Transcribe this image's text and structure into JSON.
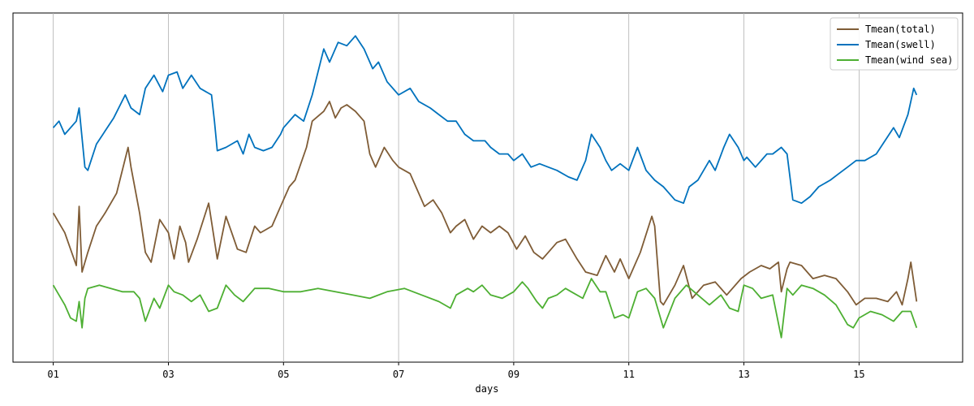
{
  "chart_data": {
    "type": "line",
    "title": "",
    "xlabel": "days",
    "ylabel": "",
    "x_ticks": [
      "01",
      "03",
      "05",
      "07",
      "09",
      "11",
      "13",
      "15"
    ],
    "x_tick_days": [
      1,
      3,
      5,
      7,
      9,
      11,
      13,
      15
    ],
    "xlim": [
      0.3,
      16.8
    ],
    "ylim": [
      0,
      1
    ],
    "grid": "vertical",
    "legend_position": "top-right",
    "series": [
      {
        "name": "Tmean(total)",
        "color": "#7f5c36",
        "x": [
          1.0,
          1.2,
          1.4,
          1.45,
          1.5,
          1.6,
          1.75,
          1.9,
          2.1,
          2.3,
          2.35,
          2.5,
          2.6,
          2.7,
          2.85,
          3.0,
          3.1,
          3.2,
          3.3,
          3.35,
          3.5,
          3.7,
          3.85,
          4.0,
          4.1,
          4.2,
          4.35,
          4.5,
          4.6,
          4.8,
          4.95,
          5.1,
          5.2,
          5.4,
          5.5,
          5.7,
          5.8,
          5.9,
          6.0,
          6.1,
          6.25,
          6.4,
          6.5,
          6.6,
          6.75,
          6.9,
          7.0,
          7.2,
          7.3,
          7.45,
          7.6,
          7.75,
          7.9,
          8.0,
          8.15,
          8.3,
          8.45,
          8.6,
          8.75,
          8.9,
          9.05,
          9.2,
          9.35,
          9.5,
          9.6,
          9.75,
          9.9,
          10.1,
          10.25,
          10.45,
          10.6,
          10.75,
          10.85,
          11.0,
          11.2,
          11.4,
          11.45,
          11.55,
          11.6,
          11.8,
          11.95,
          12.1,
          12.3,
          12.5,
          12.7,
          12.95,
          13.1,
          13.3,
          13.45,
          13.6,
          13.65,
          13.75,
          13.8,
          14.0,
          14.2,
          14.4,
          14.6,
          14.8,
          14.95,
          15.1,
          15.3,
          15.5,
          15.65,
          15.75,
          15.85,
          15.9,
          16.0
        ],
        "values": [
          0.42,
          0.36,
          0.26,
          0.44,
          0.24,
          0.3,
          0.38,
          0.42,
          0.48,
          0.62,
          0.56,
          0.42,
          0.3,
          0.27,
          0.4,
          0.36,
          0.28,
          0.38,
          0.33,
          0.27,
          0.34,
          0.45,
          0.28,
          0.41,
          0.36,
          0.31,
          0.3,
          0.38,
          0.36,
          0.38,
          0.44,
          0.5,
          0.52,
          0.62,
          0.7,
          0.73,
          0.76,
          0.71,
          0.74,
          0.75,
          0.73,
          0.7,
          0.6,
          0.56,
          0.62,
          0.58,
          0.56,
          0.54,
          0.5,
          0.44,
          0.46,
          0.42,
          0.36,
          0.38,
          0.4,
          0.34,
          0.38,
          0.36,
          0.38,
          0.36,
          0.31,
          0.35,
          0.3,
          0.28,
          0.3,
          0.33,
          0.34,
          0.28,
          0.24,
          0.23,
          0.29,
          0.24,
          0.28,
          0.22,
          0.3,
          0.41,
          0.38,
          0.15,
          0.14,
          0.2,
          0.26,
          0.16,
          0.2,
          0.21,
          0.17,
          0.22,
          0.24,
          0.26,
          0.25,
          0.27,
          0.18,
          0.25,
          0.27,
          0.26,
          0.22,
          0.23,
          0.22,
          0.18,
          0.14,
          0.16,
          0.16,
          0.15,
          0.18,
          0.14,
          0.22,
          0.27,
          0.15
        ]
      },
      {
        "name": "Tmean(swell)",
        "color": "#0072bd",
        "x": [
          1.0,
          1.1,
          1.2,
          1.3,
          1.4,
          1.45,
          1.55,
          1.6,
          1.75,
          1.9,
          2.05,
          2.25,
          2.35,
          2.5,
          2.6,
          2.75,
          2.9,
          3.0,
          3.15,
          3.25,
          3.4,
          3.55,
          3.75,
          3.8,
          3.85,
          4.0,
          4.2,
          4.3,
          4.4,
          4.5,
          4.65,
          4.8,
          4.95,
          5.0,
          5.2,
          5.35,
          5.5,
          5.7,
          5.8,
          5.95,
          6.1,
          6.25,
          6.4,
          6.55,
          6.65,
          6.8,
          7.0,
          7.2,
          7.35,
          7.55,
          7.7,
          7.85,
          8.0,
          8.15,
          8.3,
          8.5,
          8.6,
          8.75,
          8.9,
          9.0,
          9.15,
          9.3,
          9.45,
          9.6,
          9.75,
          9.95,
          10.1,
          10.25,
          10.35,
          10.5,
          10.6,
          10.7,
          10.85,
          11.0,
          11.15,
          11.3,
          11.45,
          11.6,
          11.8,
          11.95,
          12.05,
          12.2,
          12.4,
          12.5,
          12.65,
          12.75,
          12.9,
          13.0,
          13.05,
          13.2,
          13.4,
          13.5,
          13.65,
          13.75,
          13.85,
          14.0,
          14.15,
          14.3,
          14.5,
          14.65,
          14.8,
          14.95,
          15.1,
          15.3,
          15.45,
          15.6,
          15.7,
          15.85,
          15.95,
          16.0
        ],
        "values": [
          0.68,
          0.7,
          0.66,
          0.68,
          0.7,
          0.74,
          0.56,
          0.55,
          0.63,
          0.67,
          0.71,
          0.78,
          0.74,
          0.72,
          0.8,
          0.84,
          0.79,
          0.84,
          0.85,
          0.8,
          0.84,
          0.8,
          0.78,
          0.7,
          0.61,
          0.62,
          0.64,
          0.6,
          0.66,
          0.62,
          0.61,
          0.62,
          0.66,
          0.68,
          0.72,
          0.7,
          0.78,
          0.92,
          0.88,
          0.94,
          0.93,
          0.96,
          0.92,
          0.86,
          0.88,
          0.82,
          0.78,
          0.8,
          0.76,
          0.74,
          0.72,
          0.7,
          0.7,
          0.66,
          0.64,
          0.64,
          0.62,
          0.6,
          0.6,
          0.58,
          0.6,
          0.56,
          0.57,
          0.56,
          0.55,
          0.53,
          0.52,
          0.58,
          0.66,
          0.62,
          0.58,
          0.55,
          0.57,
          0.55,
          0.62,
          0.55,
          0.52,
          0.5,
          0.46,
          0.45,
          0.5,
          0.52,
          0.58,
          0.55,
          0.62,
          0.66,
          0.62,
          0.58,
          0.59,
          0.56,
          0.6,
          0.6,
          0.62,
          0.6,
          0.46,
          0.45,
          0.47,
          0.5,
          0.52,
          0.54,
          0.56,
          0.58,
          0.58,
          0.6,
          0.64,
          0.68,
          0.65,
          0.72,
          0.8,
          0.78
        ]
      },
      {
        "name": "Tmean(wind sea)",
        "color": "#4daf32",
        "x": [
          1.0,
          1.1,
          1.2,
          1.3,
          1.4,
          1.45,
          1.5,
          1.55,
          1.6,
          1.8,
          2.0,
          2.2,
          2.4,
          2.5,
          2.6,
          2.75,
          2.85,
          3.0,
          3.1,
          3.25,
          3.4,
          3.55,
          3.7,
          3.85,
          4.0,
          4.15,
          4.3,
          4.5,
          4.75,
          5.0,
          5.3,
          5.6,
          5.9,
          6.2,
          6.5,
          6.8,
          7.1,
          7.4,
          7.7,
          7.9,
          8.0,
          8.2,
          8.3,
          8.45,
          8.6,
          8.8,
          9.0,
          9.15,
          9.25,
          9.4,
          9.5,
          9.6,
          9.75,
          9.9,
          10.0,
          10.2,
          10.35,
          10.5,
          10.6,
          10.75,
          10.9,
          11.0,
          11.15,
          11.3,
          11.45,
          11.6,
          11.8,
          12.0,
          12.2,
          12.4,
          12.6,
          12.75,
          12.9,
          13.0,
          13.15,
          13.3,
          13.5,
          13.65,
          13.75,
          13.85,
          14.0,
          14.2,
          14.4,
          14.6,
          14.8,
          14.9,
          15.0,
          15.2,
          15.4,
          15.6,
          15.75,
          15.9,
          16.0
        ],
        "values": [
          0.2,
          0.17,
          0.14,
          0.1,
          0.09,
          0.15,
          0.07,
          0.16,
          0.19,
          0.2,
          0.19,
          0.18,
          0.18,
          0.16,
          0.09,
          0.16,
          0.13,
          0.2,
          0.18,
          0.17,
          0.15,
          0.17,
          0.12,
          0.13,
          0.2,
          0.17,
          0.15,
          0.19,
          0.19,
          0.18,
          0.18,
          0.19,
          0.18,
          0.17,
          0.16,
          0.18,
          0.19,
          0.17,
          0.15,
          0.13,
          0.17,
          0.19,
          0.18,
          0.2,
          0.17,
          0.16,
          0.18,
          0.21,
          0.19,
          0.15,
          0.13,
          0.16,
          0.17,
          0.19,
          0.18,
          0.16,
          0.22,
          0.18,
          0.18,
          0.1,
          0.11,
          0.1,
          0.18,
          0.19,
          0.16,
          0.07,
          0.16,
          0.2,
          0.17,
          0.14,
          0.17,
          0.13,
          0.12,
          0.2,
          0.19,
          0.16,
          0.17,
          0.04,
          0.19,
          0.17,
          0.2,
          0.19,
          0.17,
          0.14,
          0.08,
          0.07,
          0.1,
          0.12,
          0.11,
          0.09,
          0.12,
          0.12,
          0.07
        ]
      }
    ]
  }
}
